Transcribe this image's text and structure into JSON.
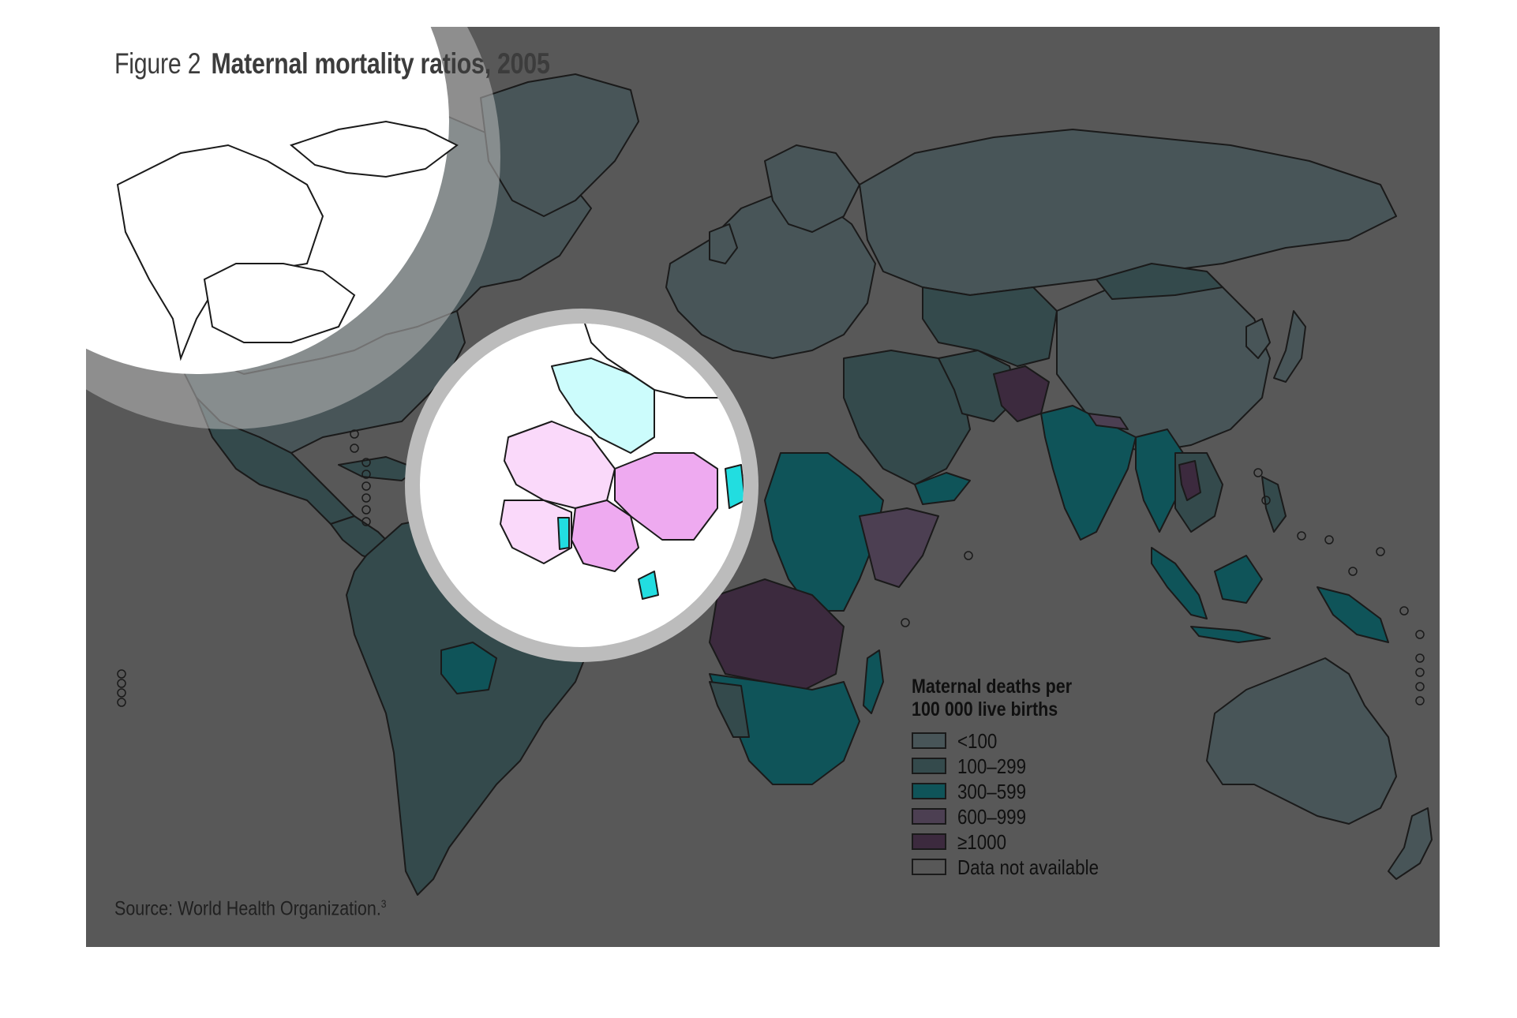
{
  "figure": {
    "label": "Figure 2",
    "title": "Maternal mortality ratios, 2005",
    "source": "Source: World Health Organization.",
    "source_ref": "3"
  },
  "legend": {
    "title_line1": "Maternal deaths per",
    "title_line2": "100 000 live births",
    "items": [
      {
        "label": "<100",
        "color": "#485558"
      },
      {
        "label": "100–299",
        "color": "#344a4c"
      },
      {
        "label": "300–599",
        "color": "#0f5459"
      },
      {
        "label": "600–999",
        "color": "#4c3f52"
      },
      {
        "label": "≥1000",
        "color": "#3c2a3e"
      },
      {
        "label": "Data not available",
        "color": "#585858"
      }
    ]
  },
  "colors": {
    "background": "#585858",
    "border": "#1a1a1a",
    "highlight_ring": "#bcbcbc",
    "focus_fill": "#ffffff",
    "west_africa_light_cyan": "#ccfcfc",
    "west_africa_pink_light": "#fad9fa",
    "west_africa_pink": "#eeaaf0",
    "west_africa_cyan": "#22dde0"
  }
}
